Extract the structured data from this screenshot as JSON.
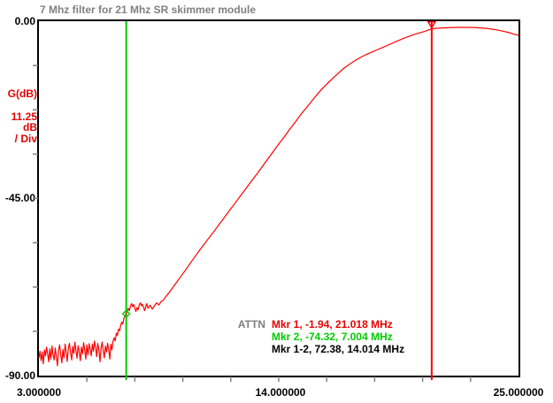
{
  "window": {
    "title": "7 Mhz filter for 21 Mhz SR skimmer module"
  },
  "y_axis": {
    "max_label": "0.00",
    "mid_label": "-45.00",
    "min_label": "-90.00",
    "unit_label": "G(dB)",
    "per_div_value": "11.25",
    "per_div_unit": "dB",
    "per_div_suffix": "/ Div"
  },
  "x_axis": {
    "start_label": "3.000000",
    "mid_label": "14.000000",
    "end_label": "25.000000"
  },
  "legend": {
    "attn_label": "ATTN",
    "mkr1": "Mkr 1, -1.94, 21.018 MHz",
    "mkr2": "Mkr 2, -74.32, 7.004 MHz",
    "mkr12": "Mkr 1-2, 72.38, 14.014 MHz"
  },
  "colors": {
    "trace": "#ff0000",
    "marker1": "#ff0000",
    "marker2": "#00cc00",
    "frame": "#000000",
    "tick": "#808080",
    "title_gray": "#808080",
    "axis_red": "#e40000"
  },
  "chart_data": {
    "type": "line",
    "title": "7 Mhz filter for 21 Mhz SR skimmer module",
    "xlabel": "MHz",
    "ylabel": "G(dB)",
    "x_range": [
      3,
      25
    ],
    "y_range": [
      -90,
      0
    ],
    "y_per_div": 11.25,
    "x_ticks": [
      3,
      5.2,
      7.4,
      9.6,
      11.8,
      14,
      16.2,
      18.4,
      20.6,
      22.8,
      25
    ],
    "y_ticks": [
      0,
      -11.25,
      -22.5,
      -33.75,
      -45,
      -56.25,
      -67.5,
      -78.75,
      -90
    ],
    "x_tick_labels": [
      "3.000000",
      "14.000000",
      "25.000000"
    ],
    "y_tick_labels": [
      "0.00",
      "-45.00",
      "-90.00"
    ],
    "legend_position": "bottom-right-inside",
    "grid": false,
    "markers": [
      {
        "name": "Mkr 1",
        "x": 21.018,
        "y": -1.94,
        "color": "#ff0000",
        "symbol": "triangle-down"
      },
      {
        "name": "Mkr 2",
        "x": 7.004,
        "y": -74.32,
        "color": "#00cc00",
        "symbol": "diamond"
      }
    ],
    "delta": {
      "name": "Mkr 1-2",
      "gain_db": 72.38,
      "freq_mhz": 14.014
    },
    "series": [
      {
        "name": "G(dB)",
        "color": "#ff0000",
        "points": [
          [
            3.0,
            -85.5
          ],
          [
            3.05,
            -83.8
          ],
          [
            3.1,
            -86.2
          ],
          [
            3.15,
            -84.0
          ],
          [
            3.2,
            -87.0
          ],
          [
            3.25,
            -83.5
          ],
          [
            3.3,
            -85.0
          ],
          [
            3.35,
            -82.8
          ],
          [
            3.4,
            -84.5
          ],
          [
            3.45,
            -86.5
          ],
          [
            3.5,
            -83.2
          ],
          [
            3.55,
            -85.8
          ],
          [
            3.6,
            -82.5
          ],
          [
            3.65,
            -84.8
          ],
          [
            3.7,
            -86.0
          ],
          [
            3.75,
            -83.0
          ],
          [
            3.8,
            -85.2
          ],
          [
            3.85,
            -87.5
          ],
          [
            3.9,
            -83.6
          ],
          [
            3.95,
            -82.2
          ],
          [
            4.0,
            -84.6
          ],
          [
            4.05,
            -86.8
          ],
          [
            4.1,
            -83.4
          ],
          [
            4.15,
            -85.5
          ],
          [
            4.2,
            -82.0
          ],
          [
            4.25,
            -84.2
          ],
          [
            4.3,
            -86.4
          ],
          [
            4.35,
            -83.0
          ],
          [
            4.4,
            -81.8
          ],
          [
            4.45,
            -84.0
          ],
          [
            4.5,
            -86.0
          ],
          [
            4.55,
            -82.6
          ],
          [
            4.6,
            -84.4
          ],
          [
            4.65,
            -81.5
          ],
          [
            4.7,
            -83.8
          ],
          [
            4.75,
            -85.6
          ],
          [
            4.8,
            -82.4
          ],
          [
            4.85,
            -84.0
          ],
          [
            4.9,
            -86.2
          ],
          [
            4.95,
            -82.8
          ],
          [
            5.0,
            -84.5
          ],
          [
            5.05,
            -81.6
          ],
          [
            5.1,
            -83.5
          ],
          [
            5.15,
            -85.8
          ],
          [
            5.2,
            -82.2
          ],
          [
            5.25,
            -84.8
          ],
          [
            5.3,
            -81.9
          ],
          [
            5.35,
            -83.2
          ],
          [
            5.4,
            -85.0
          ],
          [
            5.45,
            -82.0
          ],
          [
            5.5,
            -83.8
          ],
          [
            5.55,
            -81.2
          ],
          [
            5.6,
            -83.0
          ],
          [
            5.65,
            -85.2
          ],
          [
            5.7,
            -81.8
          ],
          [
            5.75,
            -83.5
          ],
          [
            5.8,
            -86.5
          ],
          [
            5.85,
            -83.0
          ],
          [
            5.9,
            -81.5
          ],
          [
            5.95,
            -83.8
          ],
          [
            6.0,
            -85.5
          ],
          [
            6.05,
            -82.5
          ],
          [
            6.1,
            -84.0
          ],
          [
            6.15,
            -81.8
          ],
          [
            6.2,
            -83.2
          ],
          [
            6.25,
            -85.8
          ],
          [
            6.3,
            -82.0
          ],
          [
            6.35,
            -83.5
          ],
          [
            6.4,
            -81.2
          ],
          [
            6.45,
            -80.4
          ],
          [
            6.5,
            -81.2
          ],
          [
            6.55,
            -79.2
          ],
          [
            6.6,
            -79.8
          ],
          [
            6.65,
            -78.2
          ],
          [
            6.7,
            -78.6
          ],
          [
            6.75,
            -77.2
          ],
          [
            6.8,
            -76.4
          ],
          [
            6.85,
            -76.9
          ],
          [
            6.9,
            -75.4
          ],
          [
            6.95,
            -74.9
          ],
          [
            7.004,
            -74.32
          ],
          [
            7.05,
            -73.6
          ],
          [
            7.1,
            -72.9
          ],
          [
            7.15,
            -73.5
          ],
          [
            7.2,
            -72.3
          ],
          [
            7.25,
            -71.7
          ],
          [
            7.3,
            -72.5
          ],
          [
            7.35,
            -71.9
          ],
          [
            7.4,
            -72.9
          ],
          [
            7.45,
            -73.7
          ],
          [
            7.5,
            -72.7
          ],
          [
            7.55,
            -73.3
          ],
          [
            7.6,
            -72.1
          ],
          [
            7.65,
            -71.5
          ],
          [
            7.7,
            -72.3
          ],
          [
            7.75,
            -71.9
          ],
          [
            7.8,
            -72.7
          ],
          [
            7.85,
            -73.5
          ],
          [
            7.9,
            -72.5
          ],
          [
            7.95,
            -71.7
          ],
          [
            8.0,
            -72.9
          ],
          [
            8.1,
            -72.1
          ],
          [
            8.2,
            -73.1
          ],
          [
            8.3,
            -72.3
          ],
          [
            8.4,
            -71.5
          ],
          [
            8.5,
            -72.1
          ],
          [
            8.6,
            -71.2
          ],
          [
            8.7,
            -70.9
          ],
          [
            8.8,
            -70.1
          ],
          [
            8.9,
            -69.4
          ],
          [
            9.0,
            -68.7
          ],
          [
            9.25,
            -66.8
          ],
          [
            9.5,
            -64.9
          ],
          [
            9.75,
            -63.0
          ],
          [
            10.0,
            -61.0
          ],
          [
            10.25,
            -59.1
          ],
          [
            10.5,
            -57.2
          ],
          [
            10.75,
            -55.4
          ],
          [
            11.0,
            -53.6
          ],
          [
            11.25,
            -51.7
          ],
          [
            11.5,
            -49.9
          ],
          [
            11.75,
            -48.0
          ],
          [
            12.0,
            -46.2
          ],
          [
            12.25,
            -44.3
          ],
          [
            12.5,
            -42.5
          ],
          [
            12.75,
            -40.6
          ],
          [
            13.0,
            -38.8
          ],
          [
            13.25,
            -36.9
          ],
          [
            13.5,
            -35.0
          ],
          [
            13.75,
            -33.1
          ],
          [
            14.0,
            -31.2
          ],
          [
            14.25,
            -29.4
          ],
          [
            14.5,
            -27.5
          ],
          [
            14.75,
            -25.7
          ],
          [
            15.0,
            -23.8
          ],
          [
            15.25,
            -22.1
          ],
          [
            15.5,
            -20.4
          ],
          [
            15.75,
            -18.7
          ],
          [
            16.0,
            -17.1
          ],
          [
            16.25,
            -15.7
          ],
          [
            16.5,
            -14.4
          ],
          [
            16.75,
            -13.1
          ],
          [
            17.0,
            -11.9
          ],
          [
            17.25,
            -10.9
          ],
          [
            17.5,
            -10.0
          ],
          [
            17.75,
            -9.2
          ],
          [
            18.0,
            -8.5
          ],
          [
            18.25,
            -7.9
          ],
          [
            18.5,
            -7.3
          ],
          [
            18.75,
            -6.7
          ],
          [
            19.0,
            -6.1
          ],
          [
            19.25,
            -5.5
          ],
          [
            19.5,
            -4.9
          ],
          [
            19.75,
            -4.3
          ],
          [
            20.0,
            -3.8
          ],
          [
            20.25,
            -3.3
          ],
          [
            20.5,
            -2.9
          ],
          [
            20.75,
            -2.5
          ],
          [
            21.018,
            -1.94
          ],
          [
            21.25,
            -1.8
          ],
          [
            21.5,
            -1.7
          ],
          [
            21.75,
            -1.65
          ],
          [
            22.0,
            -1.6
          ],
          [
            22.25,
            -1.58
          ],
          [
            22.5,
            -1.57
          ],
          [
            23.0,
            -1.6
          ],
          [
            23.25,
            -1.7
          ],
          [
            23.5,
            -1.8
          ],
          [
            23.75,
            -2.0
          ],
          [
            24.0,
            -2.2
          ],
          [
            24.25,
            -2.5
          ],
          [
            24.5,
            -2.8
          ],
          [
            24.75,
            -3.2
          ],
          [
            25.0,
            -3.6
          ]
        ]
      }
    ]
  }
}
